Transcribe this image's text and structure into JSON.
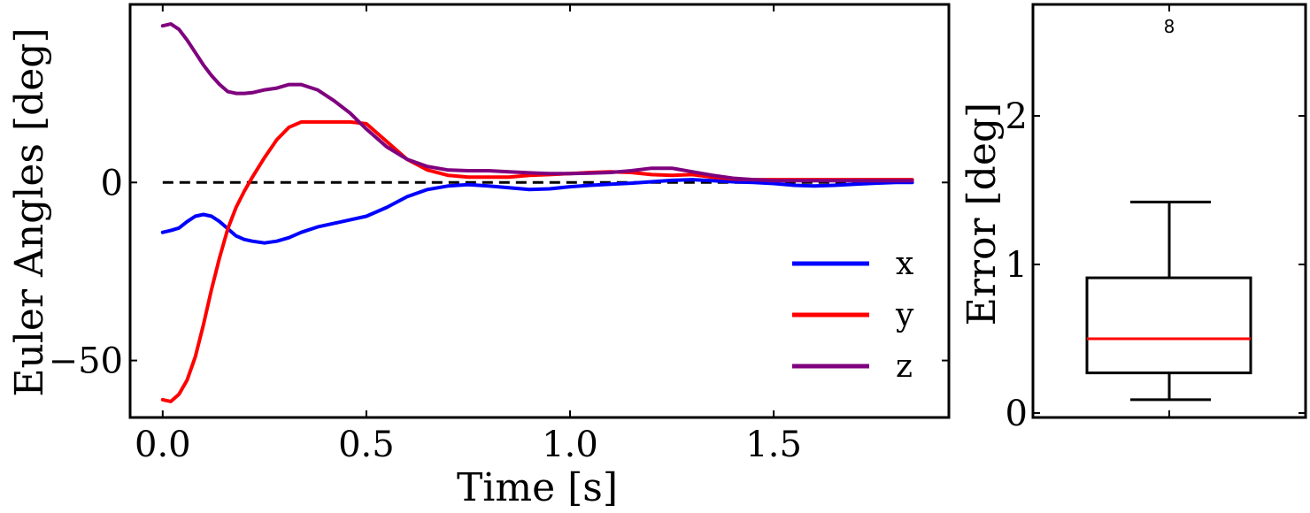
{
  "chart_data": [
    {
      "type": "line",
      "title": "",
      "xlabel": "Time [s]",
      "ylabel": "Euler Angles [deg]",
      "xlim": [
        -0.08,
        1.93
      ],
      "ylim": [
        -66,
        50
      ],
      "xticks": [
        0.0,
        0.5,
        1.0,
        1.5
      ],
      "xtick_labels": [
        "0.0",
        "0.5",
        "1.0",
        "1.5"
      ],
      "yticks": [
        -50,
        0
      ],
      "ytick_labels": [
        "−50",
        "0"
      ],
      "reference_line": {
        "value": 0,
        "style": "dashed",
        "color": "#000000"
      },
      "legend_position": "bottom-right",
      "series": [
        {
          "name": "x",
          "color": "#0000ff",
          "x": [
            0.0,
            0.02,
            0.04,
            0.06,
            0.08,
            0.1,
            0.12,
            0.14,
            0.16,
            0.18,
            0.2,
            0.22,
            0.25,
            0.28,
            0.31,
            0.34,
            0.38,
            0.42,
            0.46,
            0.5,
            0.55,
            0.6,
            0.65,
            0.7,
            0.75,
            0.8,
            0.85,
            0.9,
            0.95,
            1.0,
            1.05,
            1.1,
            1.15,
            1.2,
            1.25,
            1.3,
            1.35,
            1.4,
            1.45,
            1.5,
            1.55,
            1.6,
            1.65,
            1.7,
            1.75,
            1.8,
            1.84
          ],
          "values": [
            -14,
            -13.5,
            -12.8,
            -11,
            -9.5,
            -9,
            -9.5,
            -11,
            -13,
            -15,
            -16,
            -16.5,
            -17,
            -16.5,
            -15.5,
            -14,
            -12.5,
            -11.5,
            -10.5,
            -9.5,
            -7,
            -4,
            -2,
            -1,
            -0.6,
            -1,
            -1.5,
            -2,
            -1.8,
            -1.2,
            -0.8,
            -0.5,
            -0.2,
            0.2,
            0.6,
            0.8,
            0.5,
            0.2,
            0,
            -0.3,
            -0.8,
            -1,
            -0.8,
            -0.5,
            -0.2,
            0,
            0
          ]
        },
        {
          "name": "y",
          "color": "#ff0000",
          "x": [
            0.0,
            0.02,
            0.04,
            0.06,
            0.08,
            0.1,
            0.12,
            0.14,
            0.16,
            0.18,
            0.2,
            0.22,
            0.25,
            0.28,
            0.31,
            0.34,
            0.38,
            0.42,
            0.46,
            0.5,
            0.55,
            0.6,
            0.65,
            0.7,
            0.75,
            0.8,
            0.85,
            0.9,
            0.95,
            1.0,
            1.05,
            1.1,
            1.15,
            1.2,
            1.25,
            1.3,
            1.35,
            1.4,
            1.45,
            1.5,
            1.55,
            1.6,
            1.65,
            1.7,
            1.75,
            1.8,
            1.84
          ],
          "values": [
            -61,
            -61.5,
            -59.5,
            -55.5,
            -49,
            -40,
            -30,
            -21,
            -13,
            -7,
            -2.5,
            1.5,
            7,
            12,
            15.5,
            17,
            17,
            17,
            17,
            16.5,
            11.5,
            6.5,
            3.5,
            2,
            1.5,
            1.5,
            1.5,
            2,
            2.2,
            2.5,
            2.8,
            3,
            2.8,
            2.2,
            2,
            2.2,
            1.5,
            1,
            0.8,
            0.8,
            0.8,
            0.8,
            0.8,
            0.8,
            0.8,
            0.8,
            0.8
          ]
        },
        {
          "name": "z",
          "color": "#7f007f",
          "x": [
            0.0,
            0.02,
            0.04,
            0.06,
            0.08,
            0.1,
            0.12,
            0.14,
            0.16,
            0.18,
            0.2,
            0.22,
            0.25,
            0.28,
            0.31,
            0.34,
            0.38,
            0.42,
            0.46,
            0.5,
            0.55,
            0.6,
            0.65,
            0.7,
            0.75,
            0.8,
            0.85,
            0.9,
            0.95,
            1.0,
            1.05,
            1.1,
            1.15,
            1.2,
            1.25,
            1.3,
            1.35,
            1.4,
            1.45,
            1.5,
            1.55,
            1.6,
            1.65,
            1.7,
            1.75,
            1.8,
            1.84
          ],
          "values": [
            44,
            44.5,
            43,
            40,
            36.5,
            33,
            30,
            27.5,
            25.5,
            25,
            25,
            25.2,
            26,
            26.5,
            27.5,
            27.5,
            26,
            23,
            19.5,
            15,
            10,
            6.5,
            4.5,
            3.5,
            3.3,
            3.3,
            3,
            2.7,
            2.5,
            2.5,
            2.6,
            2.8,
            3.3,
            4,
            4,
            3,
            2,
            1.2,
            0.8,
            0.5,
            0.5,
            0.5,
            0.5,
            0.5,
            0.5,
            0.5,
            0.5
          ]
        }
      ]
    },
    {
      "type": "box",
      "title": "",
      "xlabel": "",
      "ylabel": "Error [deg]",
      "ylim": [
        -0.03,
        2.75
      ],
      "yticks": [
        0,
        1,
        2
      ],
      "ytick_labels": [
        "0",
        "1",
        "2"
      ],
      "box": {
        "whisker_low": 0.09,
        "q1": 0.27,
        "median": 0.5,
        "q3": 0.91,
        "whisker_high": 1.42,
        "median_color": "#ff0000"
      },
      "outliers": [
        2.6
      ],
      "outlier_marker": "8"
    }
  ]
}
